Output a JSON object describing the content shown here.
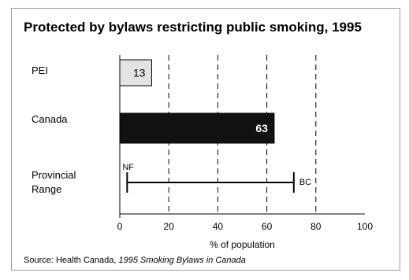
{
  "chart_data": {
    "type": "bar",
    "title": "Protected by bylaws restricting public smoking, 1995",
    "categories": [
      "PEI",
      "Canada",
      "Provincial\nRange"
    ],
    "bars": [
      {
        "category": "PEI",
        "value": 13,
        "label": "13",
        "fill": "#e3e3e3",
        "label_color": "#000000"
      },
      {
        "category": "Canada",
        "value": 63,
        "label": "63",
        "fill": "#111111",
        "label_color": "#ffffff"
      }
    ],
    "range": {
      "category": "Provincial\nRange",
      "low": 3,
      "high": 71,
      "low_label": "NF",
      "high_label": "BC"
    },
    "xlabel": "% of population",
    "ylabel": "",
    "xlim": [
      0,
      100
    ],
    "xticks": [
      0,
      20,
      40,
      60,
      80,
      100
    ],
    "grid": "vertical dashed"
  },
  "source": {
    "prefix": "Source: Health Canada, ",
    "title": "1995 Smoking Bylaws in Canada"
  }
}
